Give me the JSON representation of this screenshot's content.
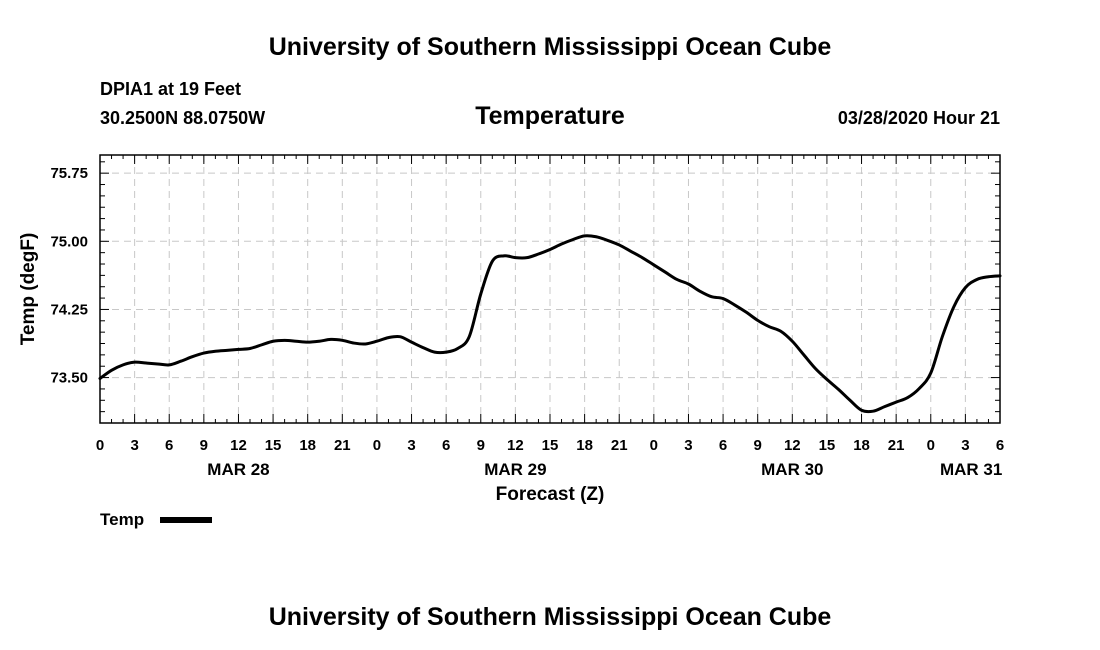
{
  "header": {
    "top_title": "University of Southern Mississippi Ocean Cube",
    "station": "DPIA1 at 19 Feet",
    "coords": "30.2500N 88.0750W",
    "chart_title": "Temperature",
    "datetime": "03/28/2020 Hour 21",
    "bottom_title": "University of Southern Mississippi Ocean Cube"
  },
  "legend": {
    "label": "Temp"
  },
  "chart_data": {
    "type": "line",
    "title": "Temperature",
    "xlabel": "Forecast (Z)",
    "ylabel": "Temp (degF)",
    "xlim": [
      0,
      78
    ],
    "ylim": [
      73.0,
      75.95
    ],
    "y_ticks": [
      73.5,
      74.25,
      75.0,
      75.75
    ],
    "y_tick_labels": [
      "73.50",
      "74.25",
      "75.00",
      "75.75"
    ],
    "x_ticks": [
      0,
      3,
      6,
      9,
      12,
      15,
      18,
      21,
      24,
      27,
      30,
      33,
      36,
      39,
      42,
      45,
      48,
      51,
      54,
      57,
      60,
      63,
      66,
      69,
      72,
      75,
      78
    ],
    "x_tick_labels": [
      "0",
      "3",
      "6",
      "9",
      "12",
      "15",
      "18",
      "21",
      "0",
      "3",
      "6",
      "9",
      "12",
      "15",
      "18",
      "21",
      "0",
      "3",
      "6",
      "9",
      "12",
      "15",
      "18",
      "21",
      "0",
      "3",
      "6"
    ],
    "date_labels": [
      {
        "label": "MAR 28",
        "x": 12
      },
      {
        "label": "MAR 29",
        "x": 36
      },
      {
        "label": "MAR 30",
        "x": 60
      },
      {
        "label": "MAR 31",
        "x": 75.5
      }
    ],
    "grid": true,
    "series": [
      {
        "name": "Temp",
        "color": "#000000",
        "x": [
          0,
          1,
          2,
          3,
          4,
          5,
          6,
          7,
          8,
          9,
          10,
          11,
          12,
          13,
          14,
          15,
          16,
          17,
          18,
          19,
          20,
          21,
          22,
          23,
          24,
          25,
          26,
          27,
          28,
          29,
          30,
          31,
          32,
          33,
          34,
          35,
          36,
          37,
          38,
          39,
          40,
          41,
          42,
          43,
          44,
          45,
          46,
          47,
          48,
          49,
          50,
          51,
          52,
          53,
          54,
          55,
          56,
          57,
          58,
          59,
          60,
          61,
          62,
          63,
          64,
          65,
          66,
          67,
          68,
          69,
          70,
          71,
          72,
          73,
          74,
          75,
          76,
          77,
          78
        ],
        "values": [
          73.49,
          73.58,
          73.64,
          73.67,
          73.66,
          73.65,
          73.64,
          73.68,
          73.73,
          73.77,
          73.79,
          73.8,
          73.81,
          73.82,
          73.86,
          73.9,
          73.91,
          73.9,
          73.89,
          73.9,
          73.92,
          73.91,
          73.88,
          73.87,
          73.9,
          73.94,
          73.95,
          73.89,
          73.83,
          73.78,
          73.78,
          73.82,
          73.95,
          74.42,
          74.78,
          74.84,
          74.82,
          74.82,
          74.86,
          74.91,
          74.97,
          75.02,
          75.06,
          75.05,
          75.01,
          74.96,
          74.89,
          74.82,
          74.74,
          74.66,
          74.58,
          74.53,
          74.45,
          74.39,
          74.37,
          74.3,
          74.22,
          74.13,
          74.06,
          74.01,
          73.9,
          73.75,
          73.6,
          73.48,
          73.37,
          73.25,
          73.14,
          73.13,
          73.18,
          73.23,
          73.28,
          73.38,
          73.55,
          73.95,
          74.28,
          74.49,
          74.58,
          74.61,
          74.62
        ]
      }
    ]
  }
}
